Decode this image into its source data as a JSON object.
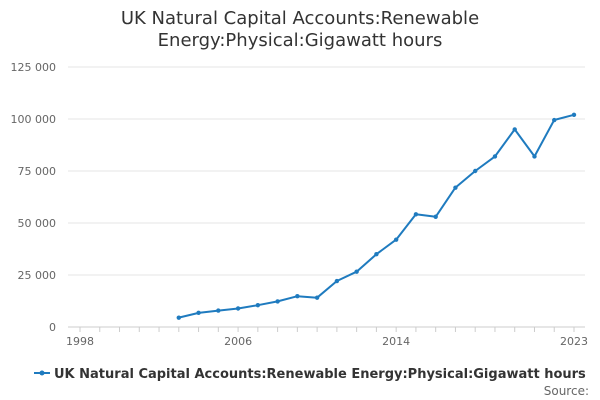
{
  "chart_data": {
    "type": "line",
    "title_lines": [
      "UK Natural Capital Accounts:Renewable",
      "Energy:Physical:Gigawatt hours"
    ],
    "xlabel": "",
    "ylabel": "",
    "xlim": [
      1998,
      2023
    ],
    "ylim": [
      0,
      125000
    ],
    "x_ticks": [
      1998,
      2006,
      2014,
      2023
    ],
    "x_tick_labels": [
      "1998",
      "2006",
      "2014",
      "2023"
    ],
    "y_ticks": [
      0,
      25000,
      50000,
      75000,
      100000,
      125000
    ],
    "y_tick_labels": [
      "0",
      "25 000",
      "50 000",
      "75 000",
      "100 000",
      "125 000"
    ],
    "grid": true,
    "legend_position": "bottom-center",
    "source_label": "Source:",
    "series": [
      {
        "name": "UK Natural Capital Accounts:Renewable Energy:Physical:Gigawatt hours",
        "color": "#1f7bbf",
        "x": [
          2003,
          2004,
          2005,
          2006,
          2007,
          2008,
          2009,
          2010,
          2011,
          2012,
          2013,
          2014,
          2015,
          2016,
          2017,
          2018,
          2019,
          2020,
          2021,
          2022,
          2023
        ],
        "values": [
          4500,
          6800,
          7900,
          8900,
          10500,
          12300,
          14800,
          14100,
          22100,
          26600,
          35000,
          42000,
          54200,
          53000,
          67000,
          75000,
          82000,
          95000,
          82000,
          99500,
          102000
        ]
      }
    ]
  }
}
